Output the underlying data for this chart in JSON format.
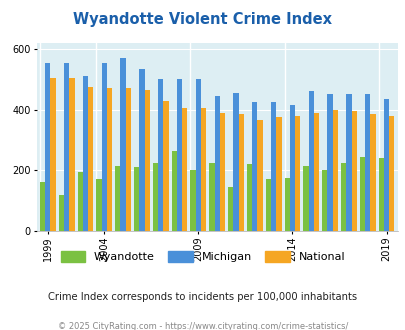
{
  "title": "Wyandotte Violent Crime Index",
  "year_data": [
    [
      1999,
      160,
      555,
      505
    ],
    [
      2000,
      120,
      555,
      505
    ],
    [
      2002,
      195,
      510,
      475
    ],
    [
      2004,
      170,
      555,
      470
    ],
    [
      2005,
      215,
      570,
      470
    ],
    [
      2006,
      210,
      535,
      465
    ],
    [
      2007,
      225,
      500,
      430
    ],
    [
      2008,
      265,
      500,
      405
    ],
    [
      2009,
      200,
      500,
      405
    ],
    [
      2010,
      225,
      445,
      390
    ],
    [
      2011,
      145,
      455,
      385
    ],
    [
      2012,
      220,
      425,
      365
    ],
    [
      2013,
      170,
      425,
      375
    ],
    [
      2014,
      175,
      415,
      380
    ],
    [
      2015,
      215,
      460,
      390
    ],
    [
      2016,
      200,
      450,
      400
    ],
    [
      2017,
      225,
      450,
      395
    ],
    [
      2018,
      245,
      450,
      385
    ],
    [
      2019,
      240,
      435,
      380
    ]
  ],
  "wyandotte_color": "#7bc142",
  "michigan_color": "#4a90d9",
  "national_color": "#f5a623",
  "bg_color": "#ddeef3",
  "ylabel_ticks": [
    0,
    200,
    400,
    600
  ],
  "xtick_years": [
    1999,
    2004,
    2009,
    2014,
    2019
  ],
  "subtitle": "Crime Index corresponds to incidents per 100,000 inhabitants",
  "copyright": "© 2025 CityRating.com - https://www.cityrating.com/crime-statistics/",
  "legend_labels": [
    "Wyandotte",
    "Michigan",
    "National"
  ],
  "title_color": "#1a5faa"
}
